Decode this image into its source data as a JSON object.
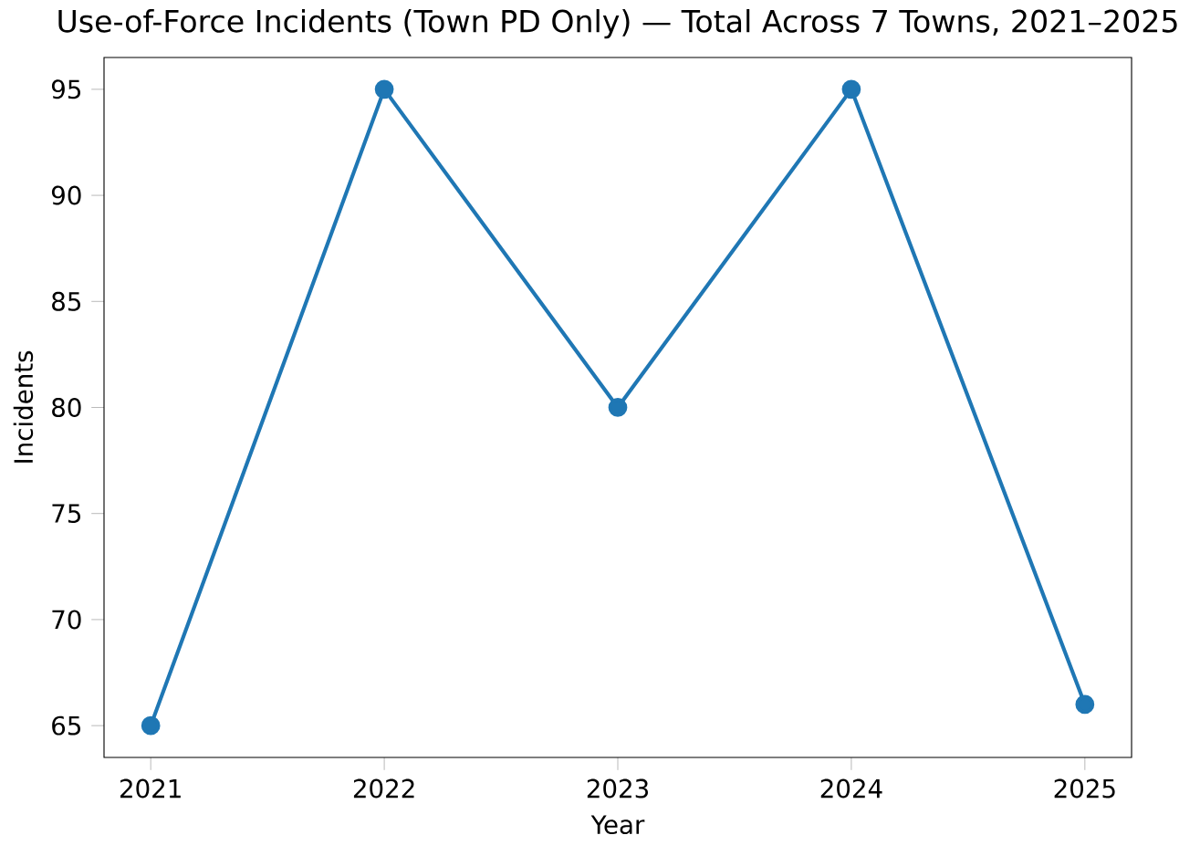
{
  "chart_data": {
    "type": "line",
    "title": "Use-of-Force Incidents (Town PD Only) — Total Across 7 Towns, 2021–2025",
    "xlabel": "Year",
    "ylabel": "Incidents",
    "x": [
      2021,
      2022,
      2023,
      2024,
      2025
    ],
    "series": [
      {
        "color": "#1f77b4",
        "values": [
          65,
          95,
          80,
          95,
          66
        ]
      }
    ],
    "xlim": [
      2020.8,
      2025.2
    ],
    "ylim": [
      63.5,
      96.5
    ],
    "xticks": [
      2021,
      2022,
      2023,
      2024,
      2025
    ],
    "yticks": [
      65,
      70,
      75,
      80,
      85,
      90,
      95
    ],
    "marker": "circle",
    "line_style": "solid"
  }
}
